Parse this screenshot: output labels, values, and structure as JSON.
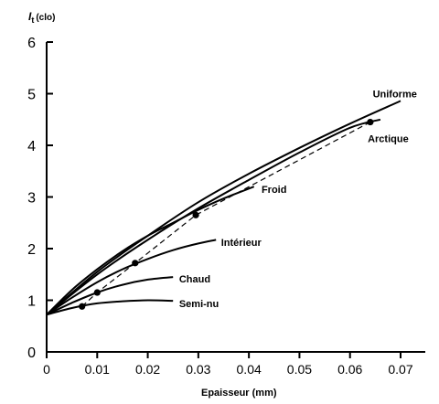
{
  "chart_data": {
    "type": "line",
    "title": "",
    "ylabel_main": "I",
    "ylabel_sub": "t",
    "ylabel_unit": "(clo)",
    "xlabel": "Epaisseur (mm)",
    "xlim": [
      0,
      0.072
    ],
    "ylim": [
      0,
      6
    ],
    "xticks": [
      "0",
      "0.01",
      "0.02",
      "0.03",
      "0.04",
      "0.05",
      "0.06",
      "0.07"
    ],
    "yticks": [
      "0",
      "1",
      "2",
      "3",
      "4",
      "5",
      "6"
    ],
    "grid": false,
    "series": [
      {
        "name": "Uniforme",
        "x": [
          0,
          0.01,
          0.02,
          0.03,
          0.04,
          0.05,
          0.06,
          0.07
        ],
        "y": [
          0.72,
          1.55,
          2.25,
          2.9,
          3.45,
          3.95,
          4.42,
          4.86
        ]
      },
      {
        "name": "Arctique",
        "x": [
          0,
          0.01,
          0.02,
          0.03,
          0.04,
          0.05,
          0.06,
          0.066
        ],
        "y": [
          0.72,
          1.5,
          2.17,
          2.78,
          3.33,
          3.86,
          4.34,
          4.5
        ]
      },
      {
        "name": "Froid",
        "x": [
          0,
          0.005,
          0.01,
          0.015,
          0.02,
          0.025,
          0.03,
          0.035,
          0.041
        ],
        "y": [
          0.72,
          1.2,
          1.6,
          1.95,
          2.25,
          2.5,
          2.75,
          2.97,
          3.2
        ]
      },
      {
        "name": "Intérieur",
        "x": [
          0,
          0.005,
          0.01,
          0.015,
          0.02,
          0.025,
          0.03,
          0.0335
        ],
        "y": [
          0.72,
          1.05,
          1.35,
          1.6,
          1.8,
          1.97,
          2.1,
          2.17
        ]
      },
      {
        "name": "Chaud",
        "x": [
          0,
          0.005,
          0.01,
          0.015,
          0.02,
          0.025
        ],
        "y": [
          0.72,
          0.95,
          1.15,
          1.3,
          1.4,
          1.45
        ]
      },
      {
        "name": "Semi-nu",
        "x": [
          0,
          0.005,
          0.01,
          0.015,
          0.02,
          0.025
        ],
        "y": [
          0.72,
          0.85,
          0.94,
          0.98,
          1.0,
          0.99
        ]
      }
    ],
    "dashed_series": {
      "x": [
        0.007,
        0.01,
        0.0175,
        0.0295,
        0.064
      ],
      "y": [
        0.88,
        1.15,
        1.72,
        2.65,
        4.45
      ]
    },
    "markers": {
      "x": [
        0.007,
        0.01,
        0.0175,
        0.0295,
        0.064
      ],
      "y": [
        0.88,
        1.15,
        1.72,
        2.65,
        4.45
      ]
    },
    "label_anchors": {
      "Uniforme": [
        0.0645,
        5.0
      ],
      "Arctique": [
        0.0635,
        4.13
      ],
      "Froid": [
        0.0425,
        3.15
      ],
      "Intérieur": [
        0.0345,
        2.12
      ],
      "Chaud": [
        0.0262,
        1.42
      ],
      "Semi-nu": [
        0.0262,
        0.94
      ]
    }
  }
}
